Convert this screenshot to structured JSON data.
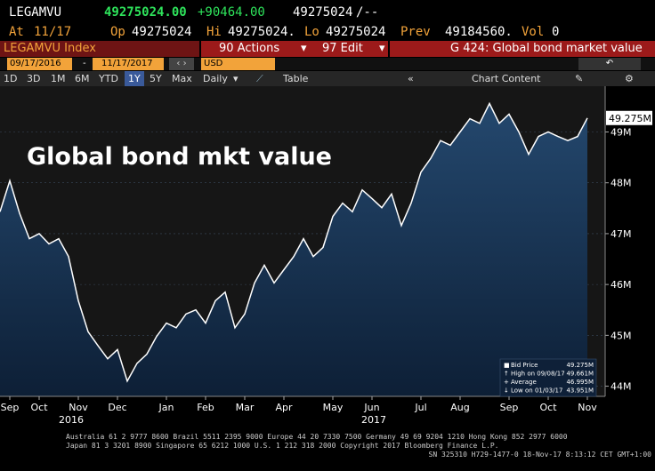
{
  "quote": {
    "ticker": "LEGAMVU",
    "last": "49275024.00",
    "change": "+90464.00",
    "bid": "49275024",
    "ask": "/--",
    "at_label": "At",
    "at": "11/17",
    "op_label": "Op",
    "op": "49275024",
    "hi_label": "Hi",
    "hi": "49275024.",
    "lo_label": "Lo",
    "lo": "49275024",
    "prev_label": "Prev",
    "prev": "49184560.",
    "vol_label": "Vol",
    "vol": "0"
  },
  "toolbar": {
    "security": "LEGAMVU Index",
    "actions": "90 Actions",
    "edit": "97 Edit",
    "function": "G 424: Global bond market value",
    "start": "09/17/2016",
    "dash": "-",
    "end": "11/17/2017",
    "currency": "USD",
    "periods": [
      "1D",
      "3D",
      "1M",
      "6M",
      "YTD",
      "1Y",
      "5Y",
      "Max"
    ],
    "active_period": 5,
    "frequency": "Daily",
    "table": "Table",
    "chart_content": "Chart Content"
  },
  "chart_data": {
    "type": "line",
    "title": "Global bond mkt value",
    "categories": [
      null,
      "Sep",
      null,
      null,
      "Oct",
      null,
      null,
      null,
      "Nov",
      null,
      null,
      null,
      "Dec",
      null,
      null,
      null,
      null,
      "Jan",
      null,
      null,
      null,
      "Feb",
      null,
      null,
      null,
      "Mar",
      null,
      null,
      null,
      "Apr",
      null,
      null,
      null,
      null,
      "May",
      null,
      null,
      null,
      "Jun",
      null,
      null,
      null,
      null,
      "Jul",
      null,
      null,
      null,
      "Aug",
      null,
      null,
      null,
      null,
      "Sep",
      null,
      null,
      null,
      "Oct",
      null,
      null,
      null,
      "Nov"
    ],
    "year_labels": [
      "2016",
      "2017"
    ],
    "values": [
      47.43,
      48.04,
      47.4,
      46.9,
      47.0,
      46.8,
      46.9,
      46.55,
      45.68,
      45.07,
      44.8,
      44.54,
      44.72,
      44.1,
      44.45,
      44.63,
      44.98,
      45.24,
      45.15,
      45.42,
      45.5,
      45.24,
      45.68,
      45.85,
      45.15,
      45.42,
      46.03,
      46.38,
      46.03,
      46.29,
      46.55,
      46.9,
      46.55,
      46.73,
      47.34,
      47.6,
      47.43,
      47.86,
      47.69,
      47.51,
      47.78,
      47.16,
      47.6,
      48.21,
      48.48,
      48.83,
      48.74,
      49.0,
      49.26,
      49.17,
      49.56,
      49.17,
      49.35,
      49.0,
      48.56,
      48.91,
      49.0,
      48.91,
      48.83,
      48.91,
      49.275
    ],
    "color": "#ffffff",
    "last_label": "49.275M",
    "ylim": [
      43.8,
      49.9
    ],
    "yticks": [
      {
        "value": 44,
        "label": "44M"
      },
      {
        "value": 45,
        "label": "45M"
      },
      {
        "value": 46,
        "label": "46M"
      },
      {
        "value": 47,
        "label": "47M"
      },
      {
        "value": 48,
        "label": "48M"
      },
      {
        "value": 49,
        "label": "49M"
      }
    ],
    "grid": true,
    "legend": [
      {
        "label": "Bid Price",
        "value": "49.275M"
      },
      {
        "label": "High on 09/08/17",
        "value": "49.661M"
      },
      {
        "label": "Average",
        "value": "46.995M"
      },
      {
        "label": "Low on 01/03/17",
        "value": "43.951M"
      }
    ]
  },
  "footer": {
    "line1": "Australia 61 2 9777 8600 Brazil 5511 2395 9000 Europe 44 20 7330 7500 Germany 49 69 9204 1210 Hong Kong 852 2977 6000",
    "line2": "Japan 81 3 3201 8900        Singapore 65 6212 1000        U.S. 1 212 318 2000           Copyright 2017 Bloomberg Finance L.P.",
    "line3": "SN 325310 H729-1477-0 18-Nov-17  8:13:12 CET  GMT+1:00"
  }
}
